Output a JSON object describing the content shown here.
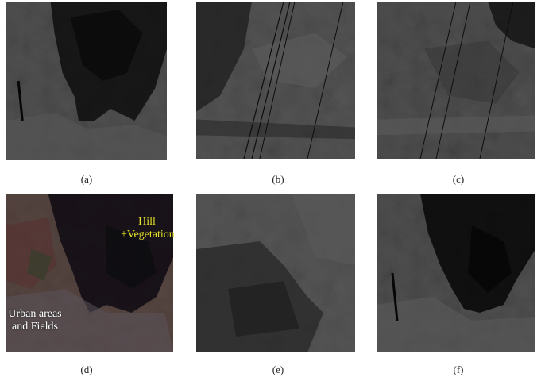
{
  "panels": [
    {
      "id": "a",
      "caption": "(a)"
    },
    {
      "id": "b",
      "caption": "(b)"
    },
    {
      "id": "c",
      "caption": "(c)"
    },
    {
      "id": "d",
      "caption": "(d)"
    },
    {
      "id": "e",
      "caption": "(e)"
    },
    {
      "id": "f",
      "caption": "(f)"
    }
  ],
  "annotations": {
    "hill_line1": "Hill",
    "hill_line2": "+Vegetation",
    "urban_line1": "Urban areas",
    "urban_line2": "and Fields"
  }
}
